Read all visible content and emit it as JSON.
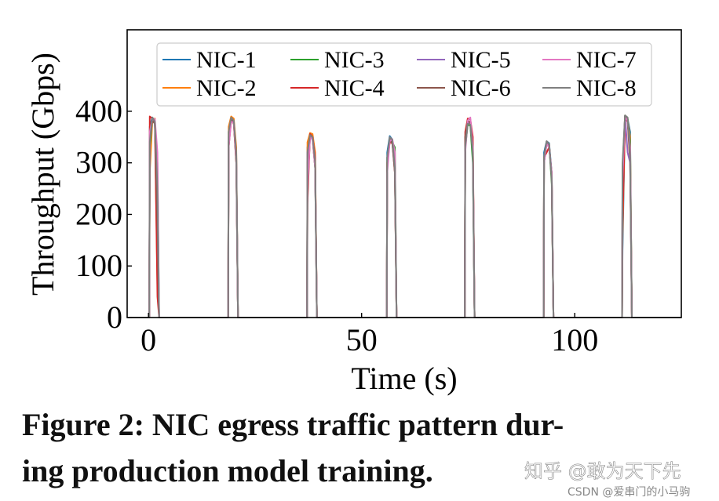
{
  "chart_data": {
    "type": "line",
    "xlabel": "Time (s)",
    "ylabel": "Throughput (Gbps)",
    "xlim": [
      -5,
      125
    ],
    "ylim": [
      0,
      558
    ],
    "xticks": [
      0,
      50,
      100
    ],
    "yticks": [
      0,
      100,
      200,
      300,
      400
    ],
    "grid": false,
    "legend_placement": "top",
    "legend_columns": 4,
    "x": [
      -5,
      0.2,
      0.3,
      0.9,
      1.5,
      2.1,
      2.5,
      18.7,
      18.8,
      19.4,
      20.0,
      20.6,
      21.0,
      37.2,
      37.3,
      37.9,
      38.5,
      39.1,
      39.5,
      55.9,
      56.0,
      56.6,
      57.2,
      57.8,
      58.2,
      74.2,
      74.3,
      74.9,
      75.5,
      76.1,
      76.5,
      92.7,
      92.8,
      93.4,
      94.0,
      94.6,
      95.0,
      111.1,
      111.2,
      111.8,
      112.4,
      113.0,
      113.4,
      125
    ],
    "series": [
      {
        "name": "NIC-1",
        "color": "#1f77b4",
        "values": [
          0,
          0,
          370,
          388,
          382,
          300,
          0,
          0,
          360,
          388,
          384,
          320,
          0,
          0,
          330,
          355,
          352,
          300,
          0,
          0,
          320,
          352,
          345,
          290,
          0,
          0,
          350,
          380,
          378,
          310,
          0,
          0,
          320,
          342,
          338,
          280,
          0,
          0,
          130,
          390,
          385,
          360,
          0,
          0
        ]
      },
      {
        "name": "NIC-2",
        "color": "#ff7f0e",
        "values": [
          0,
          0,
          280,
          380,
          386,
          60,
          0,
          0,
          370,
          390,
          386,
          330,
          0,
          0,
          340,
          358,
          356,
          320,
          0,
          0,
          300,
          348,
          344,
          280,
          0,
          0,
          340,
          376,
          380,
          330,
          0,
          0,
          310,
          340,
          336,
          270,
          0,
          0,
          160,
          388,
          384,
          350,
          0,
          0
        ]
      },
      {
        "name": "NIC-3",
        "color": "#2ca02c",
        "values": [
          0,
          0,
          330,
          384,
          380,
          170,
          0,
          0,
          340,
          384,
          380,
          310,
          0,
          0,
          250,
          352,
          350,
          290,
          0,
          0,
          310,
          346,
          340,
          330,
          0,
          0,
          330,
          374,
          372,
          300,
          0,
          0,
          300,
          338,
          334,
          260,
          0,
          0,
          250,
          392,
          386,
          340,
          0,
          0
        ]
      },
      {
        "name": "NIC-4",
        "color": "#d62728",
        "values": [
          0,
          0,
          390,
          386,
          380,
          40,
          0,
          0,
          330,
          382,
          378,
          300,
          0,
          0,
          220,
          356,
          350,
          310,
          0,
          0,
          300,
          340,
          338,
          290,
          0,
          0,
          360,
          386,
          384,
          350,
          0,
          0,
          310,
          320,
          330,
          280,
          0,
          0,
          180,
          386,
          380,
          300,
          0,
          0
        ]
      },
      {
        "name": "NIC-5",
        "color": "#9467bd",
        "values": [
          0,
          0,
          350,
          385,
          378,
          200,
          0,
          0,
          350,
          386,
          380,
          310,
          0,
          0,
          320,
          350,
          348,
          300,
          0,
          0,
          290,
          345,
          340,
          280,
          0,
          0,
          340,
          378,
          376,
          320,
          0,
          0,
          300,
          340,
          334,
          270,
          0,
          0,
          280,
          390,
          320,
          300,
          0,
          0
        ]
      },
      {
        "name": "NIC-6",
        "color": "#8c564b",
        "values": [
          0,
          0,
          340,
          382,
          376,
          180,
          0,
          0,
          340,
          384,
          376,
          300,
          0,
          0,
          300,
          352,
          346,
          290,
          0,
          0,
          290,
          344,
          338,
          280,
          0,
          0,
          350,
          382,
          378,
          330,
          0,
          0,
          310,
          342,
          336,
          270,
          0,
          0,
          290,
          392,
          384,
          310,
          0,
          0
        ]
      },
      {
        "name": "NIC-7",
        "color": "#e377c2",
        "values": [
          0,
          0,
          360,
          384,
          385,
          320,
          0,
          0,
          330,
          380,
          378,
          310,
          0,
          0,
          250,
          350,
          345,
          290,
          0,
          0,
          280,
          342,
          346,
          320,
          0,
          0,
          320,
          382,
          388,
          330,
          0,
          0,
          300,
          336,
          330,
          280,
          0,
          0,
          270,
          388,
          382,
          330,
          0,
          0
        ]
      },
      {
        "name": "NIC-8",
        "color": "#7f7f7f",
        "values": [
          0,
          0,
          340,
          388,
          380,
          250,
          0,
          0,
          360,
          388,
          382,
          320,
          0,
          0,
          320,
          354,
          350,
          300,
          0,
          0,
          310,
          350,
          345,
          290,
          0,
          0,
          330,
          376,
          374,
          320,
          0,
          0,
          310,
          342,
          336,
          270,
          0,
          0,
          300,
          392,
          388,
          310,
          0,
          0
        ]
      }
    ]
  },
  "caption": {
    "line1": "Figure 2: NIC egress traffic pattern dur-",
    "line2": "ing production model training."
  },
  "watermark": {
    "zhihu": "知乎 @敢为天下先",
    "csdn": "CSDN @爱串门的小马驹"
  }
}
